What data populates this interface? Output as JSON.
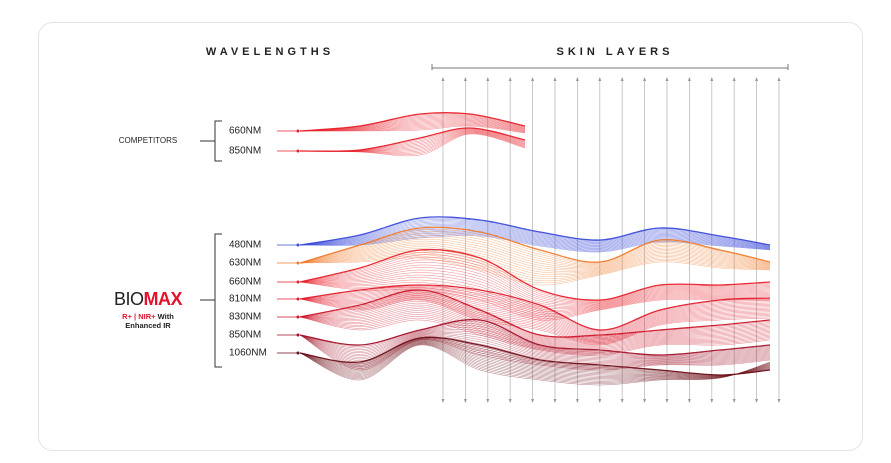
{
  "header": {
    "wavelengths": "WAVELENGTHS",
    "skin_layers": "SKIN LAYERS"
  },
  "competitors": {
    "label": "COMPETITORS",
    "wavelengths": [
      "660NM",
      "850NM"
    ]
  },
  "biomax": {
    "brand_prefix": "BIO",
    "brand_suffix": "MAX",
    "tagline_highlight": "R+ | NIR+",
    "tagline_rest": "With",
    "tagline_line2": "Enhanced IR",
    "wavelengths": [
      "480NM",
      "630NM",
      "660NM",
      "810NM",
      "830NM",
      "850NM",
      "1060NM"
    ]
  }
}
